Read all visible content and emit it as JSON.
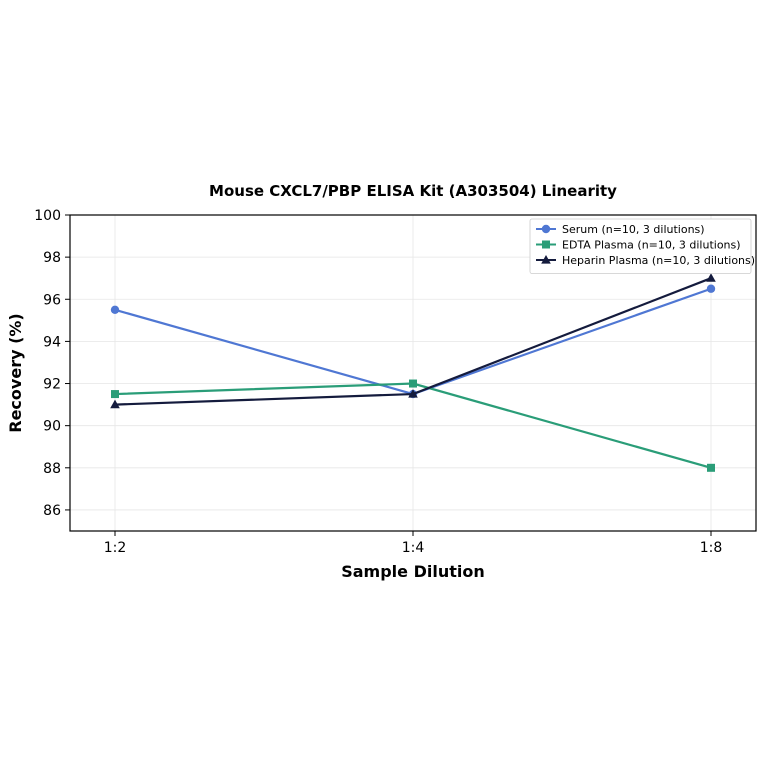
{
  "chart_data": {
    "type": "line",
    "title": "Mouse CXCL7/PBP ELISA Kit (A303504) Linearity",
    "xlabel": "Sample Dilution",
    "ylabel": "Recovery (%)",
    "categories": [
      "1:2",
      "1:4",
      "1:8"
    ],
    "ylim": [
      85,
      100
    ],
    "yticks": [
      86,
      88,
      90,
      92,
      94,
      96,
      98,
      100
    ],
    "grid": true,
    "legend_position": "top-right",
    "series": [
      {
        "name": "Serum (n=10, 3 dilutions)",
        "values": [
          95.5,
          91.5,
          96.5
        ],
        "color": "#4f77d3",
        "marker": "circle"
      },
      {
        "name": "EDTA Plasma (n=10, 3 dilutions)",
        "values": [
          91.5,
          92.0,
          88.0
        ],
        "color": "#2a9d78",
        "marker": "square"
      },
      {
        "name": "Heparin Plasma (n=10, 3 dilutions)",
        "values": [
          91.0,
          91.5,
          97.0
        ],
        "color": "#141b3d",
        "marker": "triangle"
      }
    ]
  }
}
